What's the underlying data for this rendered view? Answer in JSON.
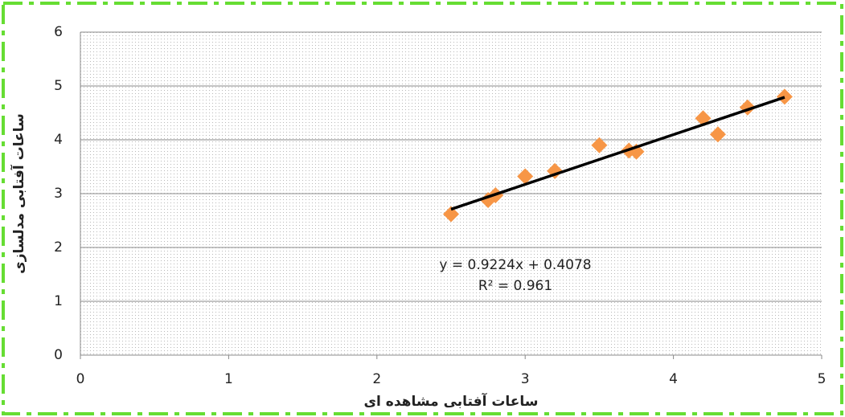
{
  "chart_data": {
    "type": "scatter",
    "x_label": "ساعات آفتابی مشاهده ای",
    "y_label": "ساعات آفتابی مدلسازی",
    "x": [
      2.5,
      2.75,
      2.8,
      3.0,
      3.2,
      3.5,
      3.7,
      3.75,
      4.2,
      4.3,
      4.5,
      4.75
    ],
    "values": [
      2.62,
      2.88,
      2.97,
      3.32,
      3.42,
      3.9,
      3.8,
      3.78,
      4.4,
      4.1,
      4.6,
      4.8
    ],
    "color": "#f79646",
    "trendline": {
      "x": [
        2.5,
        4.75
      ],
      "values": [
        2.71,
        4.79
      ],
      "color": "#000000"
    },
    "annotations": [
      "y = 0.9224x + 0.4078",
      "R² = 0.961"
    ],
    "xlim": [
      0,
      5
    ],
    "ylim": [
      0,
      6
    ],
    "xticks": [
      0,
      1,
      2,
      3,
      4,
      5
    ],
    "yticks": [
      0,
      1,
      2,
      3,
      4,
      5,
      6
    ],
    "grid": true
  }
}
